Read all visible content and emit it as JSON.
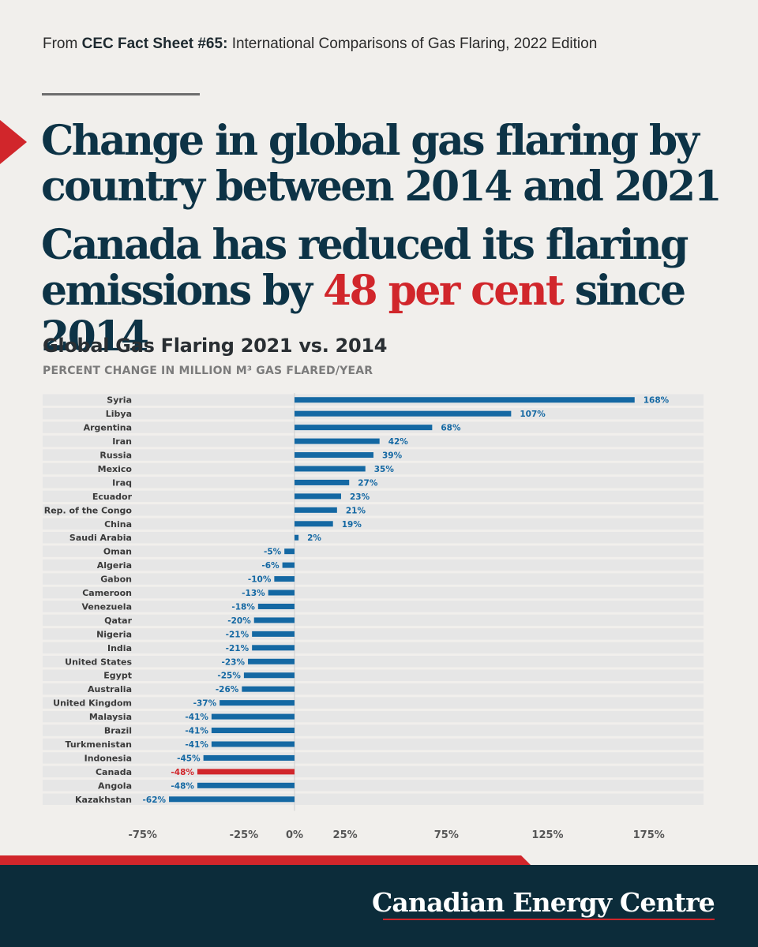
{
  "source": {
    "prefix": "From",
    "fact_sheet": "CEC Fact Sheet #65:",
    "rest": "International Comparisons of Gas Flaring, 2022 Edition"
  },
  "headline": {
    "line1": "Change in global gas flaring by",
    "line2": "country between 2014 and 2021",
    "line3": "Canada has reduced its flaring",
    "line4_prefix": "emissions by",
    "line4_highlight": "48 per cent",
    "line4_suffix": "since 2014"
  },
  "colors": {
    "accent_red": "#d1262b",
    "navy": "#0c2c3a",
    "bar_blue": "#1468a3",
    "label_blue": "#1468a3",
    "row_band": "#e6e6e6"
  },
  "chart_data": {
    "type": "bar",
    "orientation": "horizontal",
    "title": "Global Gas Flaring 2021 vs. 2014",
    "subtitle": "PERCENT CHANGE IN MILLION M³ GAS FLARED/YEAR",
    "categories": [
      "Syria",
      "Libya",
      "Argentina",
      "Iran",
      "Russia",
      "Mexico",
      "Iraq",
      "Ecuador",
      "Rep. of the Congo",
      "China",
      "Saudi Arabia",
      "Oman",
      "Algeria",
      "Gabon",
      "Cameroon",
      "Venezuela",
      "Qatar",
      "Nigeria",
      "India",
      "United States",
      "Egypt",
      "Australia",
      "United Kingdom",
      "Malaysia",
      "Brazil",
      "Turkmenistan",
      "Indonesia",
      "Canada",
      "Angola",
      "Kazakhstan"
    ],
    "values": [
      168,
      107,
      68,
      42,
      39,
      35,
      27,
      23,
      21,
      19,
      2,
      -5,
      -6,
      -10,
      -13,
      -18,
      -20,
      -21,
      -21,
      -23,
      -25,
      -26,
      -37,
      -41,
      -41,
      -41,
      -45,
      -48,
      -48,
      -62
    ],
    "value_labels": [
      "168%",
      "107%",
      "68%",
      "42%",
      "39%",
      "35%",
      "27%",
      "23%",
      "21%",
      "19%",
      "2%",
      "-5%",
      "-6%",
      "-10%",
      "-13%",
      "-18%",
      "-20%",
      "-21%",
      "-21%",
      "-23%",
      "-25%",
      "-26%",
      "-37%",
      "-41%",
      "-41%",
      "-41%",
      "-45%",
      "-48%",
      "-48%",
      "-62%"
    ],
    "highlight_category": "Canada",
    "x_ticks": [
      -75,
      -25,
      0,
      25,
      75,
      125,
      175
    ],
    "x_tick_labels": [
      "-75%",
      "-25%",
      "0%",
      "25%",
      "75%",
      "125%",
      "175%"
    ],
    "xlim": [
      -75,
      175
    ],
    "grid": false
  },
  "footer": {
    "brand": "Canadian Energy Centre"
  }
}
